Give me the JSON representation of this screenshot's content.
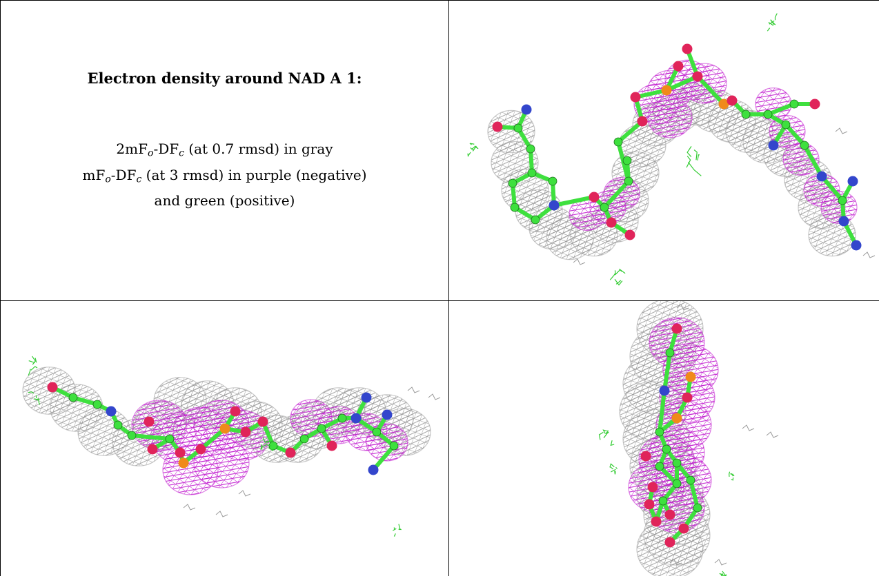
{
  "caption": {
    "title": "Electron density around NAD A 1:",
    "line1": {
      "pre": "2mF",
      "sub1": "o",
      "mid": "-DF",
      "sub2": "c",
      "post": " (at 0.7 rmsd) in gray"
    },
    "line2": {
      "pre": "mF",
      "sub1": "o",
      "mid": "-DF",
      "sub2": "c",
      "post": " (at 3 rmsd) in purple (negative)"
    },
    "line3": "and green (positive)"
  },
  "colors": {
    "mesh_gray": "#9a9a9a",
    "mesh_purple": "#c21fd0",
    "mesh_green": "#33cc33",
    "atom_carbon": "#3ee03e",
    "atom_oxygen": "#e0245a",
    "atom_nitrogen": "#3346cc",
    "atom_phosphorus": "#f08a1a"
  },
  "panels": [
    {
      "name": "density-view-top"
    },
    {
      "name": "density-view-side"
    },
    {
      "name": "density-view-end"
    }
  ]
}
